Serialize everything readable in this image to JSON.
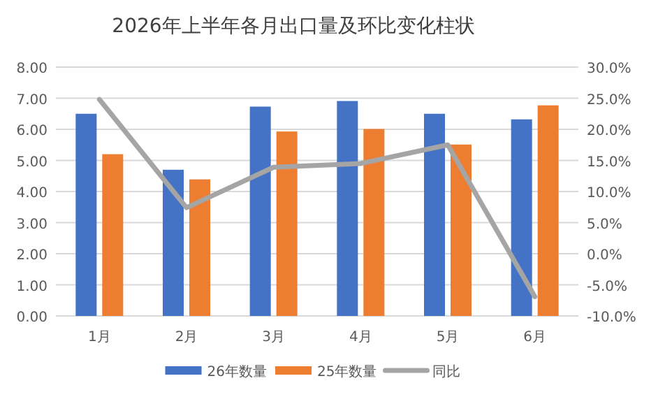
{
  "chart_data": {
    "type": "bar",
    "title": "2026年上半年各月出口量及环比变化柱状",
    "categories": [
      "1月",
      "2月",
      "3月",
      "4月",
      "5月",
      "6月"
    ],
    "series": [
      {
        "name": "26年数量",
        "color": "#4472c4",
        "values": [
          6.5,
          4.7,
          6.73,
          6.91,
          6.5,
          6.32
        ]
      },
      {
        "name": "25年数量",
        "color": "#ed7d31",
        "values": [
          5.2,
          4.39,
          5.93,
          6.01,
          5.51,
          6.77
        ]
      },
      {
        "name": "同比",
        "type": "line",
        "axis": "y2",
        "color": "#a5a5a5",
        "values": [
          24.8,
          7.4,
          13.9,
          14.5,
          17.5,
          -6.9
        ]
      }
    ],
    "ylim": [
      0,
      8
    ],
    "yticks": [
      {
        "value": 0,
        "label": "0.00"
      },
      {
        "value": 1,
        "label": "1.00"
      },
      {
        "value": 2,
        "label": "2.00"
      },
      {
        "value": 3,
        "label": "3.00"
      },
      {
        "value": 4,
        "label": "4.00"
      },
      {
        "value": 5,
        "label": "5.00"
      },
      {
        "value": 6,
        "label": "6.00"
      },
      {
        "value": 7,
        "label": "7.00"
      },
      {
        "value": 8,
        "label": "8.00"
      }
    ],
    "y2lim": [
      -10,
      30
    ],
    "y2ticks": [
      {
        "value": -10,
        "label": "-10.0%"
      },
      {
        "value": -5,
        "label": "-5.0%"
      },
      {
        "value": 0,
        "label": "0.0%"
      },
      {
        "value": 5,
        "label": "5.0%"
      },
      {
        "value": 10,
        "label": "10.0%"
      },
      {
        "value": 15,
        "label": "15.0%"
      },
      {
        "value": 20,
        "label": "20.0%"
      },
      {
        "value": 25,
        "label": "25.0%"
      },
      {
        "value": 30,
        "label": "30.0%"
      }
    ],
    "grid": "y",
    "legend": "bottom",
    "marker": "none",
    "line_style": "solid"
  }
}
